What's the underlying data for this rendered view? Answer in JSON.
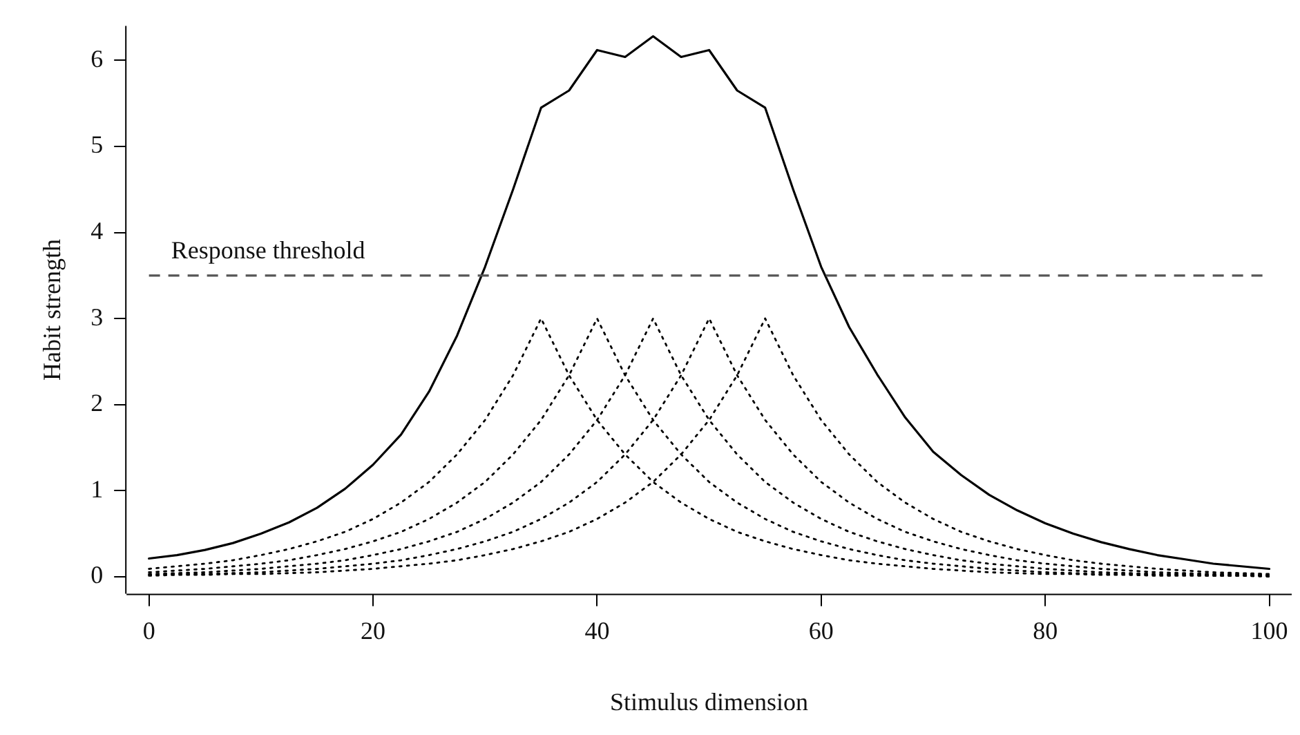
{
  "chart_data": {
    "type": "line",
    "xlabel": "Stimulus dimension",
    "ylabel": "Habit strength",
    "x": [
      0,
      2.5,
      5,
      7.5,
      10,
      12.5,
      15,
      17.5,
      20,
      22.5,
      25,
      27.5,
      30,
      32.5,
      35,
      37.5,
      40,
      42.5,
      45,
      47.5,
      50,
      52.5,
      55,
      57.5,
      60,
      62.5,
      65,
      67.5,
      70,
      72.5,
      75,
      77.5,
      80,
      82.5,
      85,
      87.5,
      90,
      92.5,
      95,
      97.5,
      100
    ],
    "series": [
      {
        "color": "#000000",
        "line_style": "solid",
        "values": [
          0.21,
          0.25,
          0.31,
          0.39,
          0.5,
          0.63,
          0.8,
          1.02,
          1.3,
          1.65,
          2.15,
          2.8,
          3.6,
          4.5,
          5.45,
          5.65,
          6.12,
          6.04,
          6.28,
          6.04,
          6.12,
          5.65,
          5.45,
          4.5,
          3.6,
          2.9,
          2.35,
          1.85,
          1.45,
          1.18,
          0.95,
          0.77,
          0.62,
          0.5,
          0.4,
          0.32,
          0.25,
          0.2,
          0.15,
          0.12,
          0.09
        ]
      },
      {
        "color": "#000000",
        "line_style": "dotted",
        "values": [
          0.09,
          0.12,
          0.15,
          0.19,
          0.25,
          0.32,
          0.41,
          0.52,
          0.67,
          0.86,
          1.1,
          1.42,
          1.82,
          2.34,
          3.0,
          2.34,
          1.82,
          1.42,
          1.1,
          0.86,
          0.67,
          0.52,
          0.41,
          0.32,
          0.25,
          0.19,
          0.15,
          0.12,
          0.09,
          0.07,
          0.05,
          0.04,
          0.03,
          0.03,
          0.02,
          0.02,
          0.01,
          0.01,
          0.01,
          0.01,
          0.0
        ]
      },
      {
        "color": "#000000",
        "line_style": "dotted",
        "values": [
          0.05,
          0.07,
          0.09,
          0.12,
          0.15,
          0.19,
          0.25,
          0.32,
          0.41,
          0.52,
          0.67,
          0.86,
          1.1,
          1.42,
          1.82,
          2.34,
          3.0,
          2.34,
          1.82,
          1.42,
          1.1,
          0.86,
          0.67,
          0.52,
          0.41,
          0.32,
          0.25,
          0.19,
          0.15,
          0.12,
          0.09,
          0.07,
          0.05,
          0.04,
          0.03,
          0.03,
          0.02,
          0.02,
          0.01,
          0.01,
          0.01
        ]
      },
      {
        "color": "#000000",
        "line_style": "dotted",
        "values": [
          0.03,
          0.04,
          0.05,
          0.07,
          0.09,
          0.12,
          0.15,
          0.19,
          0.25,
          0.32,
          0.41,
          0.52,
          0.67,
          0.86,
          1.1,
          1.42,
          1.82,
          2.34,
          3.0,
          2.34,
          1.82,
          1.42,
          1.1,
          0.86,
          0.67,
          0.52,
          0.41,
          0.32,
          0.25,
          0.19,
          0.15,
          0.12,
          0.09,
          0.07,
          0.05,
          0.04,
          0.03,
          0.03,
          0.02,
          0.02,
          0.01
        ]
      },
      {
        "color": "#000000",
        "line_style": "dotted",
        "values": [
          0.02,
          0.03,
          0.03,
          0.04,
          0.05,
          0.07,
          0.09,
          0.12,
          0.15,
          0.19,
          0.25,
          0.32,
          0.41,
          0.52,
          0.67,
          0.86,
          1.1,
          1.42,
          1.82,
          2.34,
          3.0,
          2.34,
          1.82,
          1.42,
          1.1,
          0.86,
          0.67,
          0.52,
          0.41,
          0.32,
          0.25,
          0.19,
          0.15,
          0.12,
          0.09,
          0.07,
          0.05,
          0.04,
          0.03,
          0.03,
          0.02
        ]
      },
      {
        "color": "#000000",
        "line_style": "dotted",
        "values": [
          0.01,
          0.02,
          0.02,
          0.03,
          0.03,
          0.04,
          0.05,
          0.07,
          0.09,
          0.12,
          0.15,
          0.19,
          0.25,
          0.32,
          0.41,
          0.52,
          0.67,
          0.86,
          1.1,
          1.42,
          1.82,
          2.34,
          3.0,
          2.34,
          1.82,
          1.42,
          1.1,
          0.86,
          0.67,
          0.52,
          0.41,
          0.32,
          0.25,
          0.19,
          0.15,
          0.12,
          0.09,
          0.07,
          0.05,
          0.04,
          0.03
        ]
      }
    ],
    "ref_lines": [
      {
        "axis": "y",
        "value": 3.5,
        "label": "Response threshold",
        "color": "#555555",
        "line_style": "dashed"
      }
    ],
    "xlim": [
      -2,
      102
    ],
    "xticks": [
      0,
      20,
      40,
      60,
      80,
      100
    ],
    "ylim": [
      -0.2,
      6.4
    ],
    "yticks": [
      0,
      1,
      2,
      3,
      4,
      5,
      6
    ],
    "grid": false,
    "legend": false,
    "marker": "none"
  }
}
